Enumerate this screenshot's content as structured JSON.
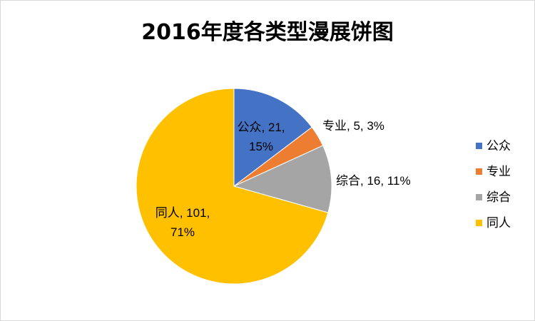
{
  "chart_data": {
    "type": "pie",
    "title": "2016年度各类型漫展饼图",
    "categories": [
      "公众",
      "专业",
      "综合",
      "同人"
    ],
    "values": [
      21,
      5,
      16,
      101
    ],
    "percent_labels": [
      "15%",
      "3%",
      "11%",
      "71%"
    ],
    "colors": [
      "#4472c4",
      "#ed7d31",
      "#a5a5a5",
      "#ffc000"
    ],
    "legend_position": "right",
    "data_labels": [
      {
        "category": "公众",
        "value": "21",
        "percent": "15%"
      },
      {
        "category": "专业",
        "value": "5",
        "percent": "3%"
      },
      {
        "category": "综合",
        "value": "16",
        "percent": "11%"
      },
      {
        "category": "同人",
        "value": "101",
        "percent": "71%"
      }
    ]
  }
}
